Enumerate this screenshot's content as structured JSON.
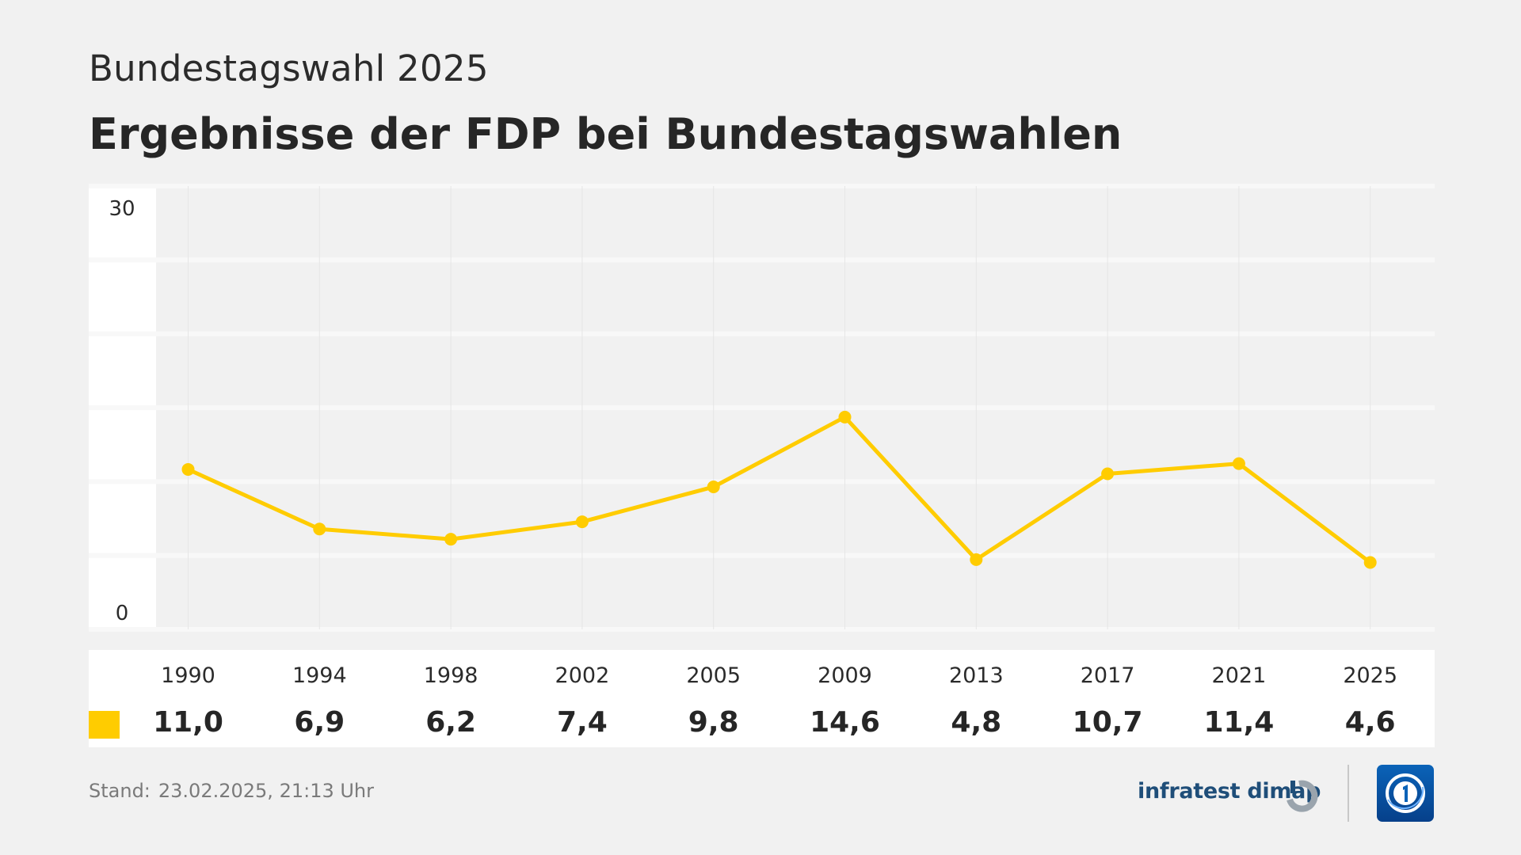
{
  "header": {
    "subtitle": "Bundestagswahl 2025",
    "title": "Ergebnisse der FDP bei Bundestagswahlen"
  },
  "footer": {
    "stand_label": "Stand:",
    "stand_value": "23.02.2025, 21:13 Uhr",
    "brand": "infratest dimap"
  },
  "colors": {
    "series": "#ffcc00",
    "background": "#f1f1f1",
    "brand_text": "#1f4e79",
    "logo": "#0a63b8"
  },
  "icons": {
    "brand_icon": "infratest-dimap-logo-icon",
    "channel_logo": "tagesschau-1-logo-icon"
  },
  "chart_data": {
    "type": "line",
    "categories": [
      "1990",
      "1994",
      "1998",
      "2002",
      "2005",
      "2009",
      "2013",
      "2017",
      "2021",
      "2025"
    ],
    "series": [
      {
        "values": [
          11.0,
          6.9,
          6.2,
          7.4,
          9.8,
          14.6,
          4.8,
          10.7,
          11.4,
          4.6
        ],
        "labels": [
          "11,0",
          "6,9",
          "6,2",
          "7,4",
          "9,8",
          "14,6",
          "4,8",
          "10,7",
          "11,4",
          "4,6"
        ]
      }
    ],
    "ylim": [
      0,
      30
    ],
    "yticks": [
      "0",
      "30"
    ],
    "grid": true,
    "legend": "table-below"
  }
}
